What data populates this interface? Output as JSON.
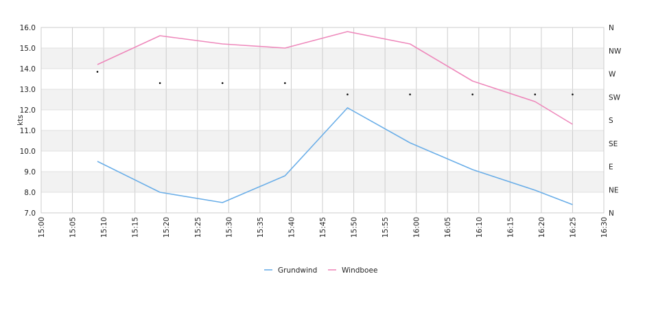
{
  "chart_data": {
    "type": "line",
    "ylabel": "kts",
    "ylim": [
      7.0,
      16.0
    ],
    "yticks": [
      "7.0",
      "8.0",
      "9.0",
      "10.0",
      "11.0",
      "12.0",
      "13.0",
      "14.0",
      "15.0",
      "16.0"
    ],
    "xlim": [
      "15:00",
      "16:30"
    ],
    "xticks": [
      "15:00",
      "15:05",
      "15:10",
      "15:15",
      "15:20",
      "15:25",
      "15:30",
      "15:35",
      "15:40",
      "15:45",
      "15:50",
      "15:55",
      "16:00",
      "16:05",
      "16:10",
      "16:15",
      "16:20",
      "16:25",
      "16:30"
    ],
    "y2ticks": [
      "N",
      "NE",
      "E",
      "SE",
      "S",
      "SW",
      "W",
      "NW",
      "N"
    ],
    "grid": true,
    "legend_position": "bottom-center",
    "series": [
      {
        "name": "Grundwind",
        "color": "#6aaee8",
        "x": [
          "15:09",
          "15:19",
          "15:29",
          "15:39",
          "15:49",
          "15:59",
          "16:09",
          "16:19",
          "16:25"
        ],
        "values": [
          9.5,
          8.0,
          7.5,
          8.8,
          12.1,
          10.4,
          9.1,
          8.1,
          7.4
        ]
      },
      {
        "name": "Windboee",
        "color": "#ee88bb",
        "x": [
          "15:09",
          "15:19",
          "15:29",
          "15:39",
          "15:49",
          "15:59",
          "16:09",
          "16:19",
          "16:25"
        ],
        "values": [
          14.2,
          15.6,
          15.2,
          15.0,
          15.8,
          15.2,
          13.4,
          12.4,
          11.3
        ]
      }
    ],
    "direction_points": {
      "x": [
        "15:09",
        "15:19",
        "15:29",
        "15:39",
        "15:49",
        "15:59",
        "16:09",
        "16:19",
        "16:25"
      ],
      "values": [
        13.85,
        13.3,
        13.3,
        13.3,
        12.75,
        12.75,
        12.75,
        12.75,
        12.75
      ]
    }
  }
}
